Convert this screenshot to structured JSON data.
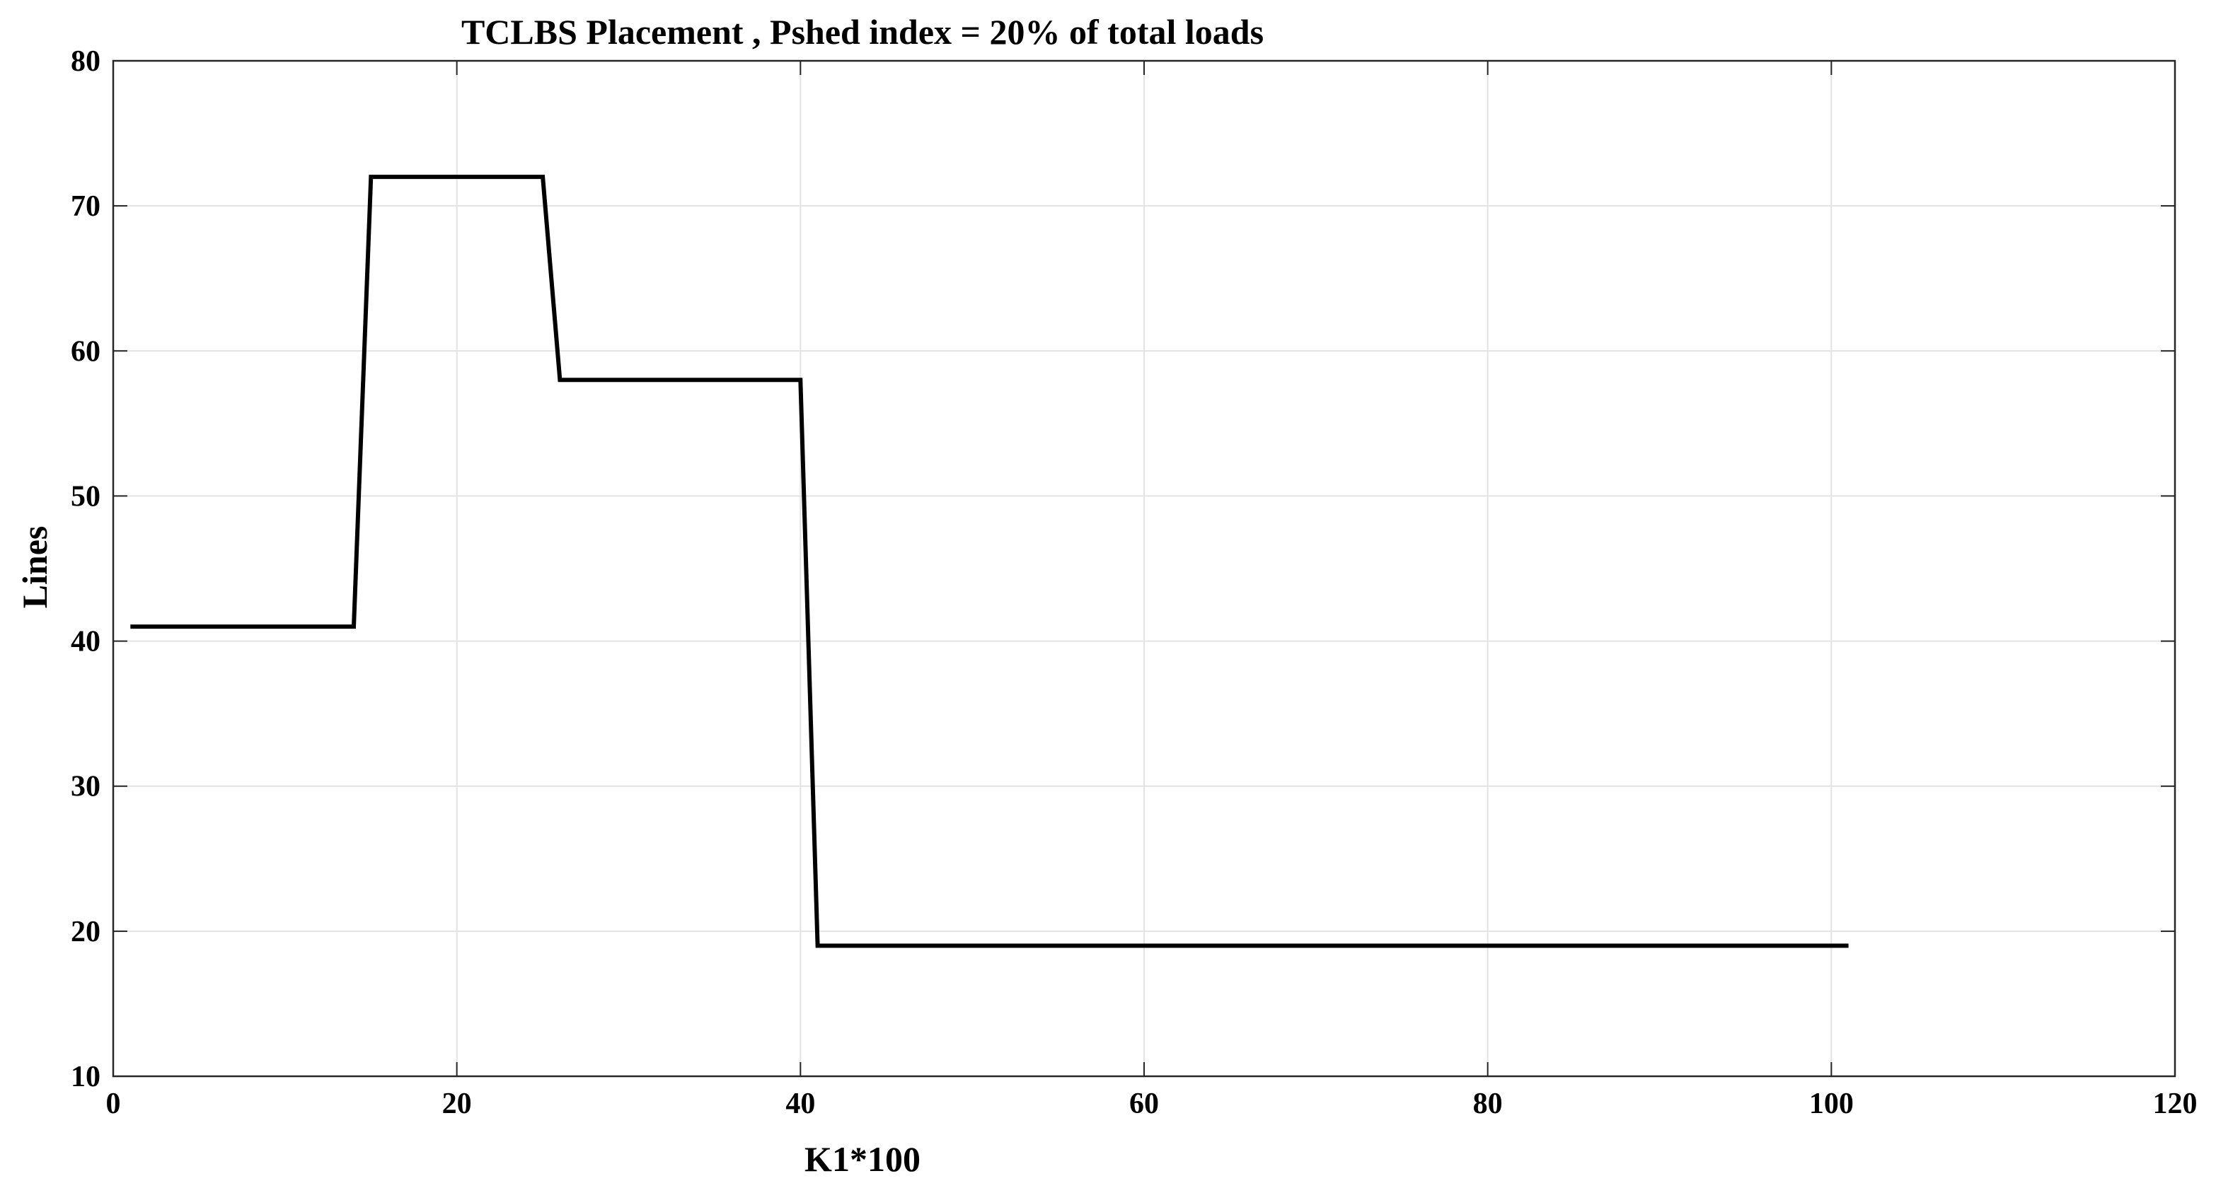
{
  "chart_data": {
    "type": "line",
    "title": "TCLBS Placement , Pshed index = 20% of total loads",
    "xlabel": "K1*100",
    "ylabel": "Lines",
    "xlim": [
      0,
      120
    ],
    "ylim": [
      10,
      80
    ],
    "xticks": [
      0,
      20,
      40,
      60,
      80,
      100,
      120
    ],
    "yticks": [
      10,
      20,
      30,
      40,
      50,
      60,
      70,
      80
    ],
    "xtick_labels": [
      "0",
      "20",
      "40",
      "60",
      "80",
      "100",
      "120"
    ],
    "ytick_labels": [
      "10",
      "20",
      "30",
      "40",
      "50",
      "60",
      "70",
      "80"
    ],
    "grid": true,
    "legend": "none",
    "series": [
      {
        "color": "#000000",
        "x": [
          1,
          14,
          15,
          25,
          26,
          40,
          41,
          101
        ],
        "y": [
          41,
          41,
          72,
          72,
          58,
          58,
          19,
          19
        ]
      }
    ]
  },
  "colors": {
    "line": "#000000",
    "grid": "#e3e3e3",
    "axes": "#262626",
    "background": "#ffffff"
  }
}
